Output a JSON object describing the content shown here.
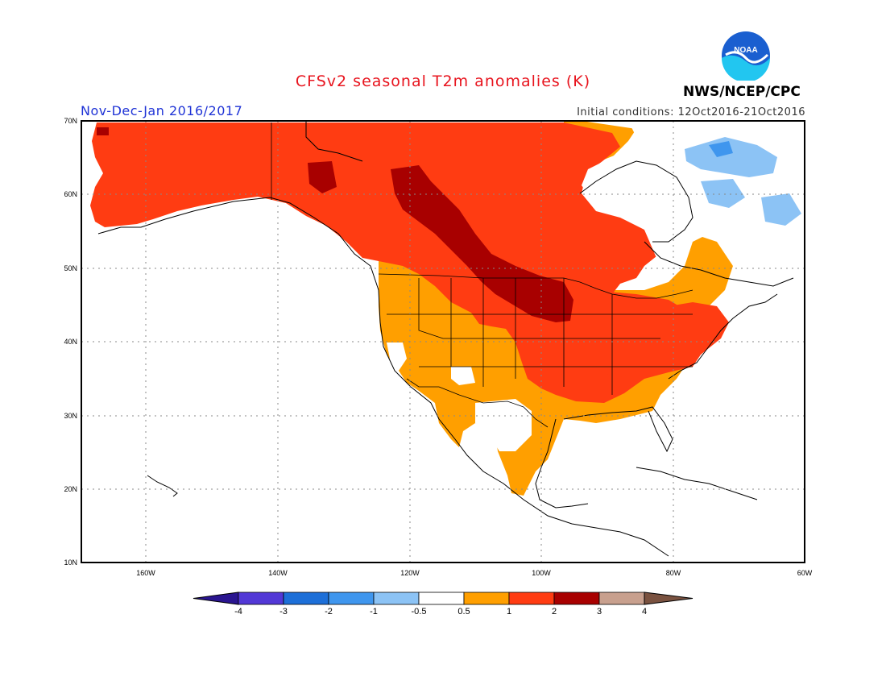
{
  "map": {
    "title": "CFSv2 seasonal T2m anomalies (K)",
    "period": "Nov-Dec-Jan 2016/2017",
    "initial_conditions": "Initial conditions: 12Oct2016-21Oct2016",
    "agency": "NWS/NCEP/CPC",
    "logo_text": "NOAA",
    "lat_labels": [
      "70N",
      "60N",
      "50N",
      "40N",
      "30N",
      "20N",
      "10N"
    ],
    "lon_labels": [
      "160W",
      "140W",
      "120W",
      "100W",
      "80W",
      "60W"
    ]
  },
  "legend": {
    "labels": [
      "-4",
      "-3",
      "-2",
      "-1",
      "-0.5",
      "0.5",
      "1",
      "2",
      "3",
      "4"
    ],
    "colors": {
      "lt_neg4": "#2a1590",
      "neg4_neg3": "#5238d6",
      "neg3_neg2": "#1d6fd8",
      "neg2_neg1": "#3f96ee",
      "neg1_neg05": "#8cc3f5",
      "neutral": "#ffffff",
      "p05_1": "#ff9f00",
      "p1_2": "#ff3c12",
      "p2_3": "#a80000",
      "p3_4": "#c8a08e",
      "gt4": "#7a5240"
    }
  }
}
